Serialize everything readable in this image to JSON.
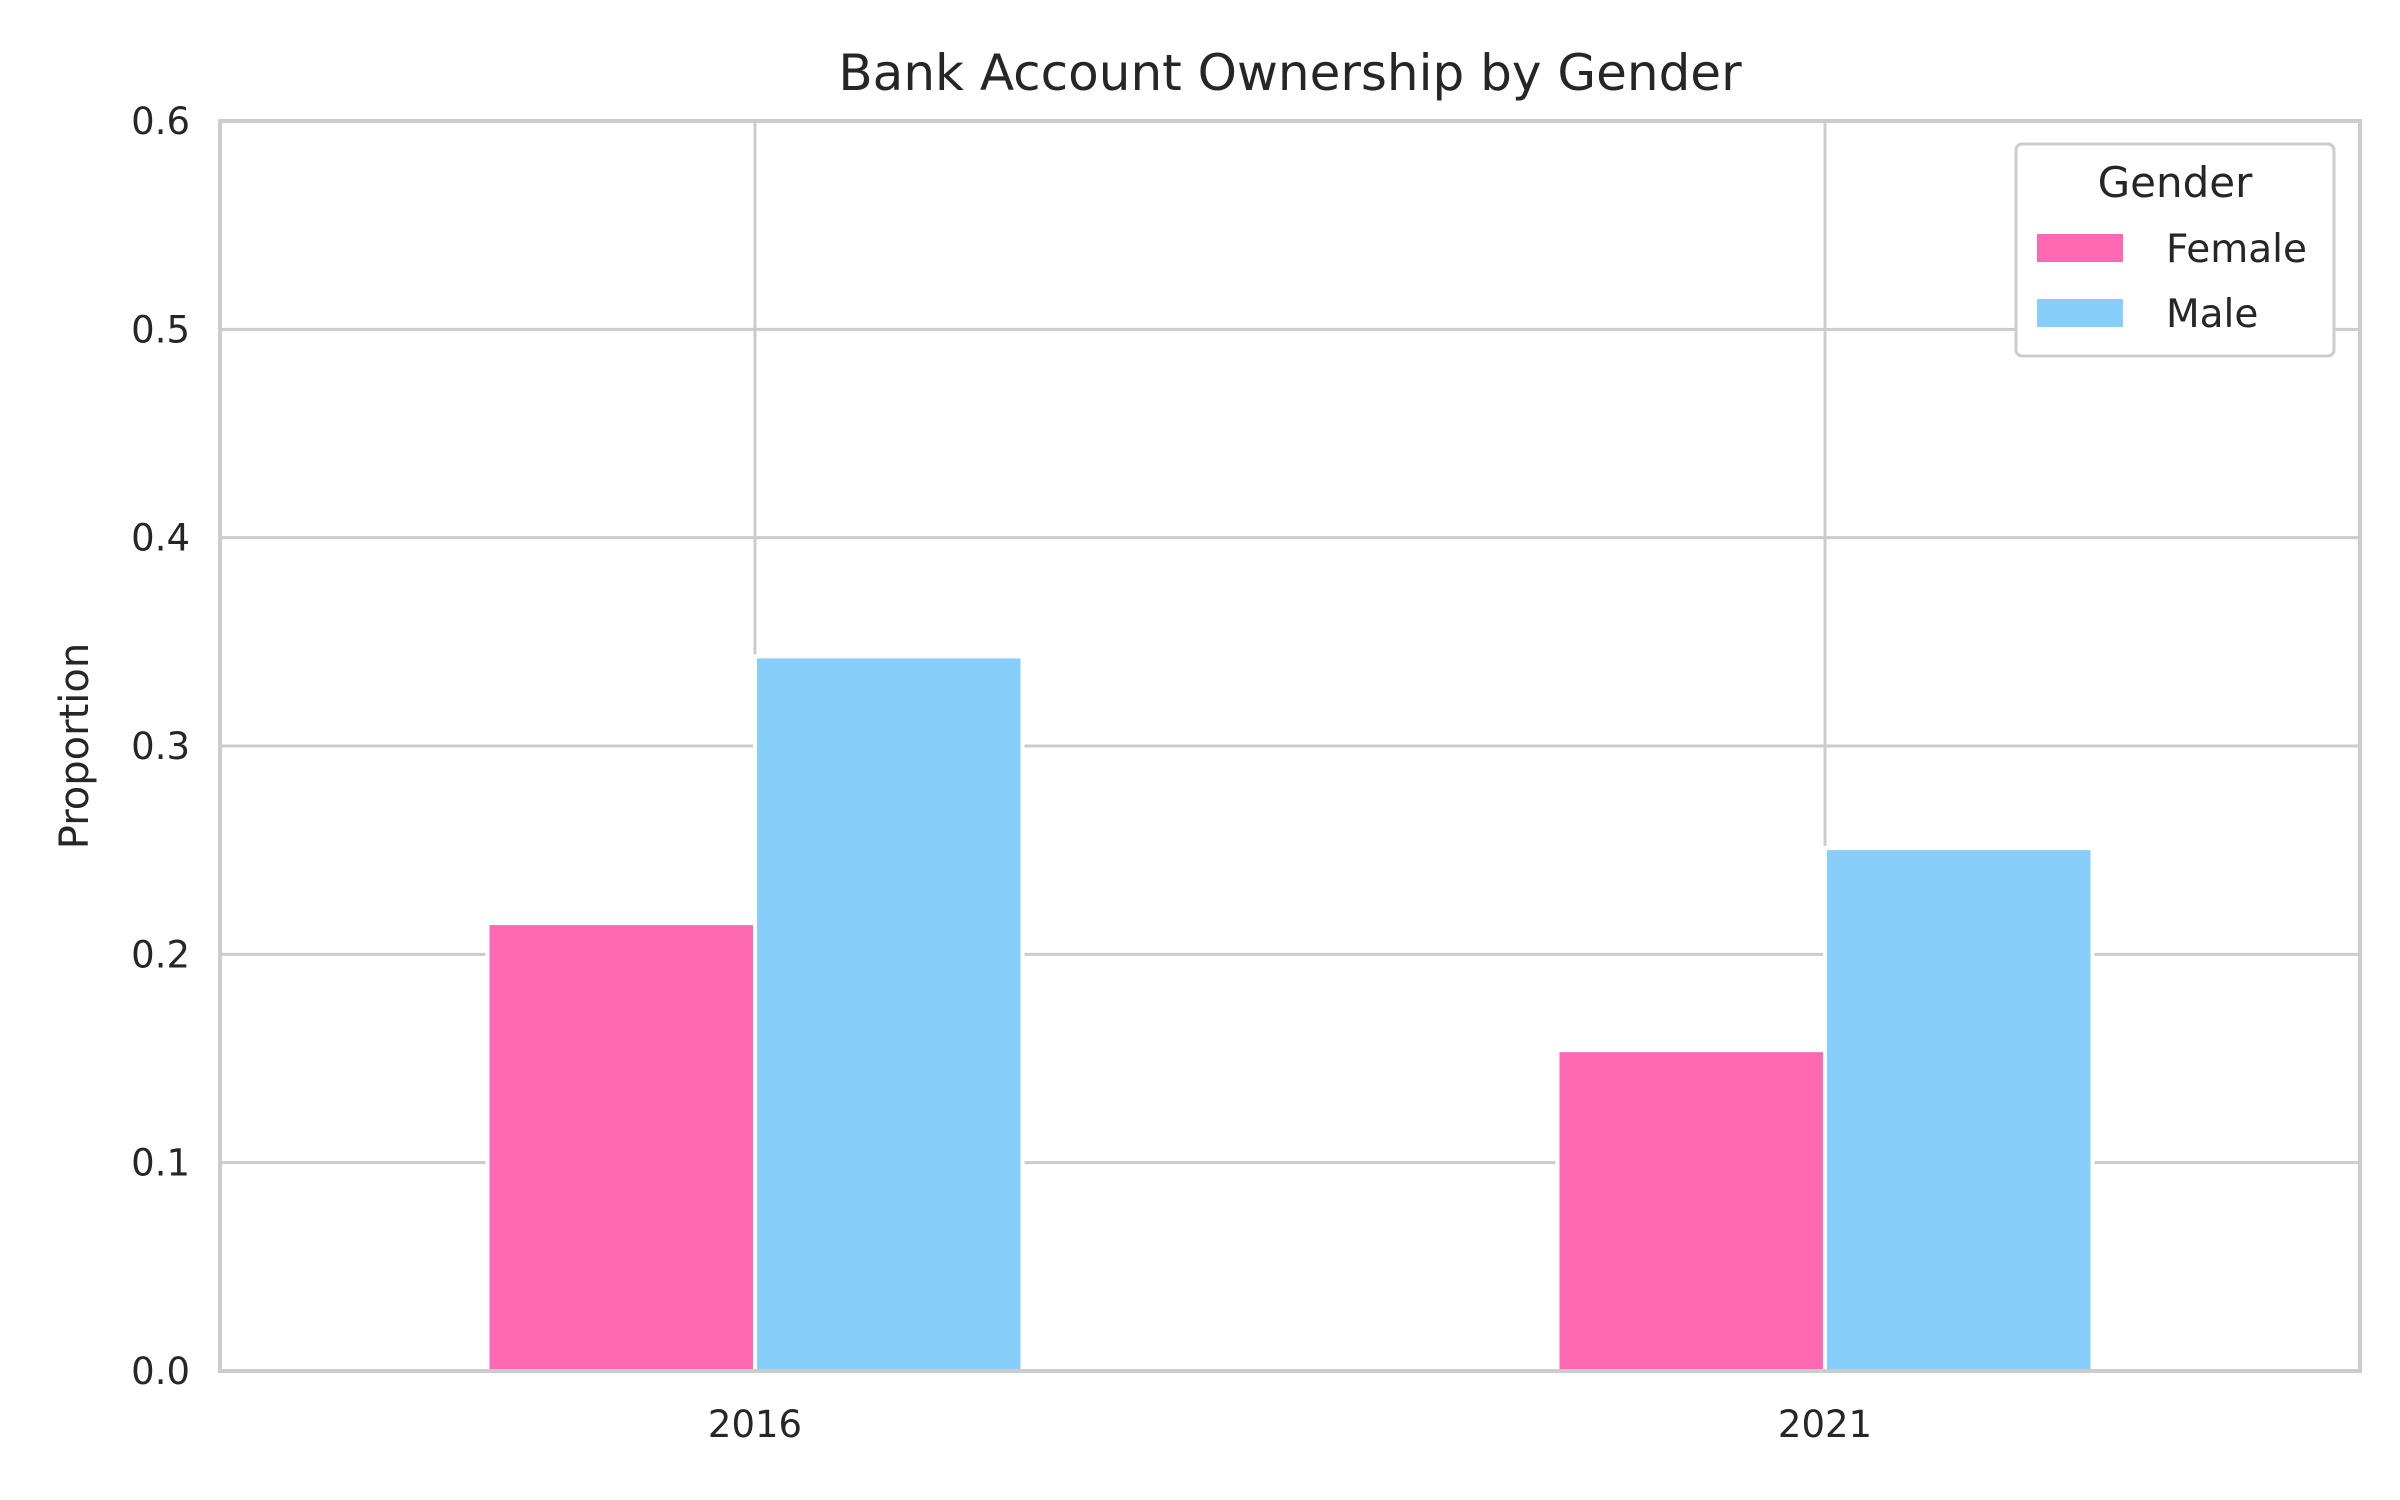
{
  "chart_data": {
    "type": "bar",
    "title": "Bank Account Ownership by Gender",
    "xlabel": "",
    "ylabel": "Proportion",
    "categories": [
      "2016",
      "2021"
    ],
    "series": [
      {
        "name": "Female",
        "values": [
          0.215,
          0.154
        ],
        "color": "#ff69b4"
      },
      {
        "name": "Male",
        "values": [
          0.343,
          0.251
        ],
        "color": "#87cefa"
      }
    ],
    "ylim": [
      0,
      0.6
    ],
    "yticks": [
      "0.0",
      "0.1",
      "0.2",
      "0.3",
      "0.4",
      "0.5",
      "0.6"
    ],
    "grid": true,
    "legend": {
      "title": "Gender",
      "position": "top-right"
    },
    "colors": {
      "grid": "#cccccc",
      "axes": "#cccccc",
      "text": "#262626"
    }
  }
}
